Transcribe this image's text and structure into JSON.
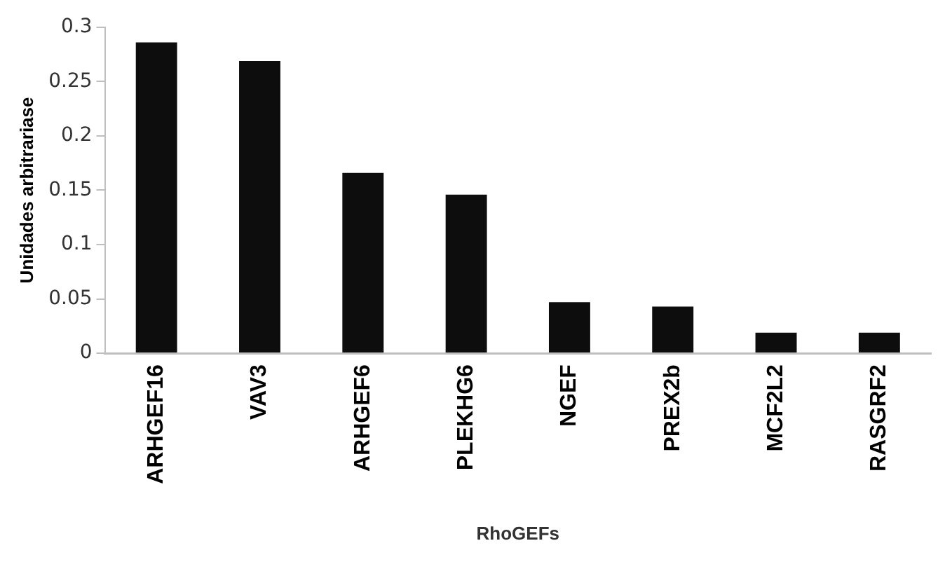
{
  "chart_data": {
    "type": "bar",
    "xlabel": "RhoGEFs",
    "ylabel": "Unidades arbitrariase",
    "categories": [
      "ARHGEF16",
      "VAV3",
      "ARHGEF6",
      "PLEKHG6",
      "NGEF",
      "PREX2b",
      "MCF2L2",
      "RASGRF2"
    ],
    "values": [
      0.286,
      0.269,
      0.166,
      0.146,
      0.047,
      0.043,
      0.019,
      0.019
    ],
    "color": "#0d0d0d",
    "ylim": [
      0,
      0.3
    ],
    "yticks": [
      0,
      0.05,
      0.1,
      0.15,
      0.2,
      0.25,
      0.3
    ],
    "grid": false,
    "legend": false
  }
}
